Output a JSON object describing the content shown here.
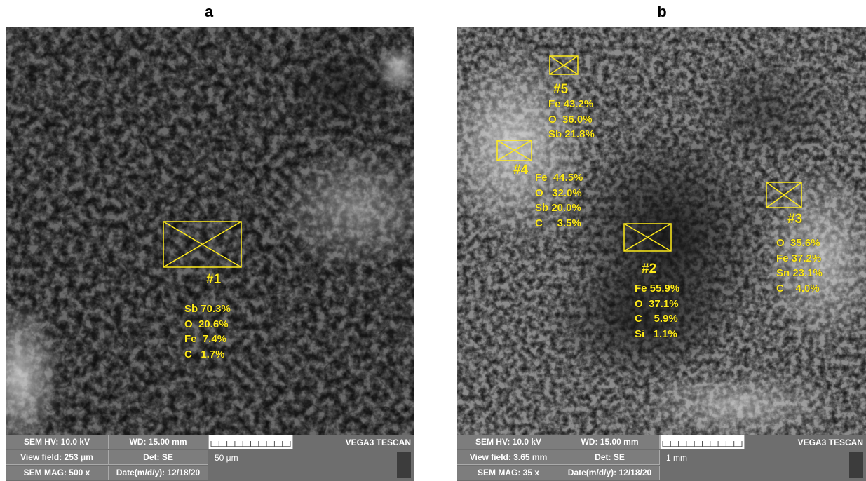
{
  "panels": [
    {
      "label": "a",
      "spots": [
        {
          "id": "#1",
          "lines": [
            "Sb 70.3%",
            "O  20.6%",
            "Fe  7.4%",
            "C   1.7%"
          ]
        }
      ],
      "info": {
        "hv": "SEM HV: 10.0 kV",
        "wd": "WD: 15.00 mm",
        "brand": "VEGA3 TESCAN",
        "view_field": "View field: 253 μm",
        "det": "Det: SE",
        "scale": "50 μm",
        "mag": "SEM MAG: 500 x",
        "date": "Date(m/d/y): 12/18/20"
      }
    },
    {
      "label": "b",
      "spots": [
        {
          "id": "#5",
          "lines": [
            "Fe 43.2%",
            "O  36.0%",
            "Sb 21.8%"
          ]
        },
        {
          "id": "#4",
          "lines": [
            "Fe  44.5%",
            "O   32.0%",
            "Sb 20.0%",
            "C     3.5%"
          ]
        },
        {
          "id": "#2",
          "lines": [
            "Fe 55.9%",
            "O  37.1%",
            "C    5.9%",
            "Si   1.1%"
          ]
        },
        {
          "id": "#3",
          "lines": [
            "O  35.6%",
            "Fe 37.2%",
            "Sn 23.1%",
            "C    4.0%"
          ]
        }
      ],
      "info": {
        "hv": "SEM HV: 10.0 kV",
        "wd": "WD: 15.00 mm",
        "brand": "VEGA3 TESCAN",
        "view_field": "View field: 3.65 mm",
        "det": "Det: SE",
        "scale": "1 mm",
        "mag": "SEM MAG: 35 x",
        "date": "Date(m/d/y): 12/18/20"
      }
    }
  ]
}
